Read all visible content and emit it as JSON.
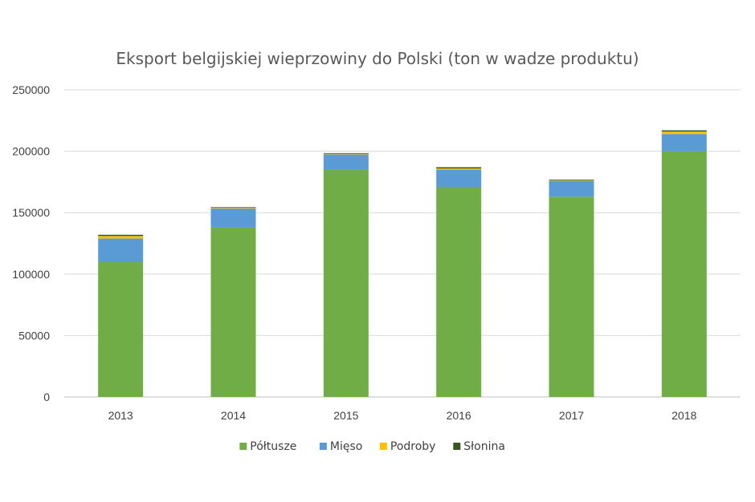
{
  "chart_data": {
    "type": "bar",
    "stacked": true,
    "title": "Eksport belgijskiej wieprzowiny do Polski (ton w wadze produktu)",
    "xlabel": "",
    "ylabel": "",
    "categories": [
      "2013",
      "2014",
      "2015",
      "2016",
      "2017",
      "2018"
    ],
    "ylim": [
      0,
      250000
    ],
    "yticks": [
      0,
      50000,
      100000,
      150000,
      200000,
      250000
    ],
    "grid": true,
    "legend_position": "bottom",
    "series": [
      {
        "name": "Półtusze",
        "color": "#70ad47",
        "values": [
          110000,
          138000,
          185000,
          171000,
          163000,
          200000
        ]
      },
      {
        "name": "Mięso",
        "color": "#5b9bd5",
        "values": [
          19000,
          15500,
          12500,
          14000,
          13000,
          14000
        ]
      },
      {
        "name": "Podroby",
        "color": "#ffc000",
        "values": [
          2000,
          500,
          500,
          1000,
          500,
          2000
        ]
      },
      {
        "name": "Słonina",
        "color": "#375623",
        "values": [
          1000,
          500,
          500,
          1000,
          500,
          1000
        ]
      }
    ]
  }
}
